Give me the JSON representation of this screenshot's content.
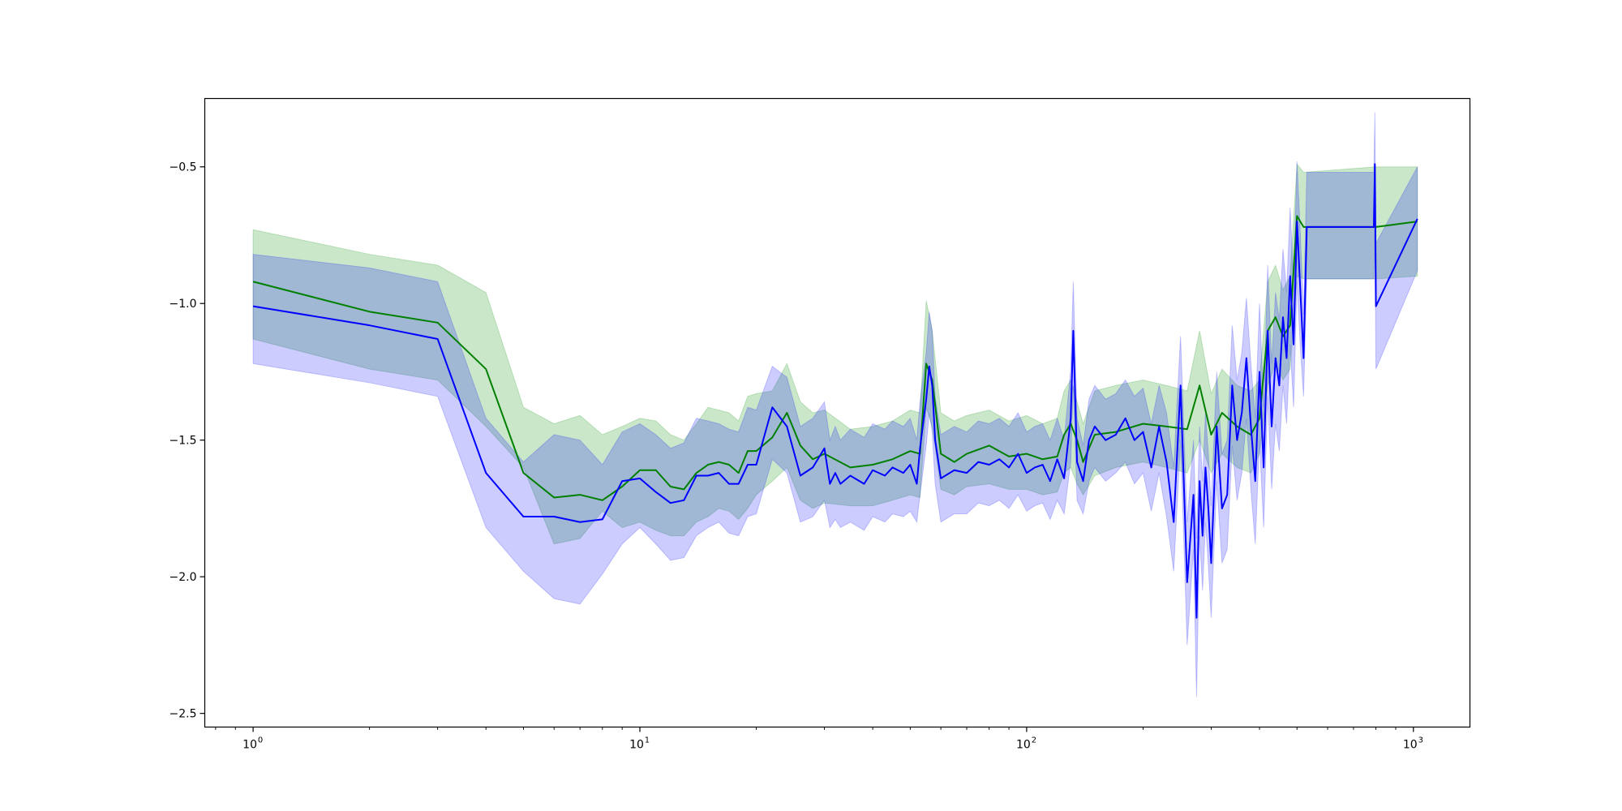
{
  "chart_data": {
    "type": "line",
    "x_scale": "log",
    "xlim": [
      0.75,
      1400
    ],
    "ylim": [
      -2.55,
      -0.25
    ],
    "grid": false,
    "x_ticks": [
      {
        "value": 1,
        "base": "10",
        "exp": "0"
      },
      {
        "value": 10,
        "base": "10",
        "exp": "1"
      },
      {
        "value": 100,
        "base": "10",
        "exp": "2"
      },
      {
        "value": 1000,
        "base": "10",
        "exp": "3"
      }
    ],
    "y_ticks": [
      {
        "value": -0.5,
        "label": "−0.5"
      },
      {
        "value": -1.0,
        "label": "−1.0"
      },
      {
        "value": -1.5,
        "label": "−1.5"
      },
      {
        "value": -2.0,
        "label": "−2.0"
      },
      {
        "value": -2.5,
        "label": "−2.5"
      }
    ],
    "series": [
      {
        "color": "#008000",
        "band_color": "#2ca02c",
        "band_opacity": 0.25,
        "x": [
          1,
          2,
          3,
          4,
          5,
          6,
          7,
          8,
          9,
          10,
          11,
          12,
          13,
          14,
          15,
          16,
          17,
          18,
          19,
          20,
          22,
          24,
          26,
          28,
          30,
          35,
          40,
          45,
          50,
          53,
          55,
          57,
          60,
          65,
          70,
          80,
          90,
          100,
          110,
          120,
          125,
          130,
          135,
          140,
          150,
          170,
          200,
          230,
          260,
          280,
          300,
          320,
          350,
          380,
          400,
          420,
          440,
          460,
          480,
          500,
          520,
          800,
          1024
        ],
        "y": [
          -0.92,
          -1.03,
          -1.07,
          -1.24,
          -1.62,
          -1.71,
          -1.7,
          -1.72,
          -1.67,
          -1.61,
          -1.61,
          -1.67,
          -1.68,
          -1.62,
          -1.59,
          -1.58,
          -1.59,
          -1.62,
          -1.54,
          -1.54,
          -1.49,
          -1.4,
          -1.52,
          -1.57,
          -1.55,
          -1.6,
          -1.59,
          -1.57,
          -1.54,
          -1.55,
          -1.22,
          -1.28,
          -1.55,
          -1.58,
          -1.55,
          -1.52,
          -1.56,
          -1.55,
          -1.57,
          -1.56,
          -1.48,
          -1.44,
          -1.5,
          -1.58,
          -1.48,
          -1.47,
          -1.44,
          -1.45,
          -1.46,
          -1.3,
          -1.48,
          -1.4,
          -1.45,
          -1.48,
          -1.42,
          -1.1,
          -1.05,
          -1.12,
          -1.08,
          -0.68,
          -0.72,
          -0.72,
          -0.7
        ],
        "lower": [
          -1.13,
          -1.24,
          -1.28,
          -1.45,
          -1.6,
          -1.88,
          -1.86,
          -1.76,
          -1.82,
          -1.8,
          -1.83,
          -1.85,
          -1.85,
          -1.8,
          -1.78,
          -1.75,
          -1.76,
          -1.79,
          -1.75,
          -1.7,
          -1.65,
          -1.6,
          -1.72,
          -1.75,
          -1.73,
          -1.74,
          -1.74,
          -1.72,
          -1.7,
          -1.71,
          -1.38,
          -1.45,
          -1.68,
          -1.7,
          -1.67,
          -1.66,
          -1.68,
          -1.68,
          -1.7,
          -1.69,
          -1.62,
          -1.6,
          -1.66,
          -1.7,
          -1.63,
          -1.6,
          -1.58,
          -1.6,
          -1.62,
          -1.5,
          -1.62,
          -1.55,
          -1.6,
          -1.62,
          -1.55,
          -1.3,
          -1.22,
          -1.28,
          -1.24,
          -0.9,
          -0.91,
          -0.91,
          -0.9
        ],
        "upper": [
          -0.73,
          -0.82,
          -0.86,
          -0.96,
          -1.38,
          -1.44,
          -1.41,
          -1.48,
          -1.45,
          -1.42,
          -1.43,
          -1.48,
          -1.5,
          -1.44,
          -1.38,
          -1.39,
          -1.4,
          -1.43,
          -1.34,
          -1.33,
          -1.32,
          -1.22,
          -1.36,
          -1.4,
          -1.39,
          -1.46,
          -1.45,
          -1.43,
          -1.39,
          -1.4,
          -0.99,
          -1.1,
          -1.4,
          -1.43,
          -1.41,
          -1.39,
          -1.43,
          -1.41,
          -1.44,
          -1.42,
          -1.32,
          -1.28,
          -1.36,
          -1.44,
          -1.32,
          -1.3,
          -1.28,
          -1.3,
          -1.32,
          -1.1,
          -1.33,
          -1.24,
          -1.3,
          -1.32,
          -1.28,
          -0.92,
          -0.86,
          -0.95,
          -0.9,
          -0.49,
          -0.52,
          -0.5,
          -0.5
        ]
      },
      {
        "color": "#0000ff",
        "band_color": "#0000ff",
        "band_opacity": 0.2,
        "x": [
          1,
          2,
          3,
          4,
          5,
          6,
          7,
          8,
          9,
          10,
          11,
          12,
          13,
          14,
          15,
          16,
          17,
          18,
          19,
          20,
          22,
          24,
          26,
          28,
          30,
          31,
          32,
          33,
          35,
          38,
          40,
          43,
          45,
          48,
          50,
          52,
          53,
          55,
          56,
          57,
          58,
          60,
          65,
          70,
          75,
          80,
          85,
          90,
          95,
          100,
          105,
          110,
          115,
          120,
          125,
          130,
          132,
          135,
          140,
          145,
          150,
          160,
          170,
          180,
          190,
          200,
          210,
          220,
          230,
          240,
          250,
          260,
          270,
          275,
          280,
          285,
          290,
          295,
          300,
          310,
          320,
          330,
          340,
          350,
          360,
          370,
          380,
          390,
          400,
          410,
          420,
          430,
          440,
          450,
          460,
          470,
          480,
          490,
          500,
          510,
          520,
          530,
          790,
          795,
          800,
          1024
        ],
        "y": [
          -1.01,
          -1.08,
          -1.13,
          -1.62,
          -1.78,
          -1.78,
          -1.8,
          -1.79,
          -1.65,
          -1.64,
          -1.69,
          -1.73,
          -1.72,
          -1.63,
          -1.63,
          -1.62,
          -1.66,
          -1.66,
          -1.59,
          -1.59,
          -1.38,
          -1.45,
          -1.63,
          -1.6,
          -1.53,
          -1.66,
          -1.62,
          -1.66,
          -1.63,
          -1.66,
          -1.61,
          -1.63,
          -1.6,
          -1.62,
          -1.59,
          -1.66,
          -1.53,
          -1.35,
          -1.23,
          -1.3,
          -1.5,
          -1.64,
          -1.61,
          -1.62,
          -1.58,
          -1.59,
          -1.57,
          -1.6,
          -1.55,
          -1.62,
          -1.6,
          -1.59,
          -1.65,
          -1.57,
          -1.64,
          -1.42,
          -1.1,
          -1.58,
          -1.65,
          -1.5,
          -1.45,
          -1.5,
          -1.48,
          -1.42,
          -1.5,
          -1.47,
          -1.6,
          -1.45,
          -1.58,
          -1.8,
          -1.3,
          -2.02,
          -1.7,
          -2.15,
          -1.65,
          -1.85,
          -1.6,
          -1.75,
          -1.95,
          -1.45,
          -1.75,
          -1.7,
          -1.3,
          -1.5,
          -1.4,
          -1.2,
          -1.45,
          -1.65,
          -1.25,
          -1.6,
          -1.1,
          -1.45,
          -1.2,
          -1.3,
          -1.05,
          -1.2,
          -0.9,
          -1.15,
          -0.7,
          -0.95,
          -1.2,
          -0.72,
          -0.72,
          -0.49,
          -1.01,
          -0.69
        ],
        "lower": [
          -1.22,
          -1.29,
          -1.34,
          -1.82,
          -1.98,
          -2.08,
          -2.1,
          -1.99,
          -1.88,
          -1.82,
          -1.88,
          -1.94,
          -1.93,
          -1.85,
          -1.82,
          -1.8,
          -1.84,
          -1.85,
          -1.78,
          -1.77,
          -1.57,
          -1.62,
          -1.8,
          -1.78,
          -1.72,
          -1.82,
          -1.79,
          -1.82,
          -1.8,
          -1.83,
          -1.78,
          -1.8,
          -1.77,
          -1.78,
          -1.76,
          -1.8,
          -1.7,
          -1.52,
          -1.4,
          -1.47,
          -1.66,
          -1.8,
          -1.77,
          -1.77,
          -1.73,
          -1.74,
          -1.72,
          -1.75,
          -1.7,
          -1.76,
          -1.74,
          -1.73,
          -1.79,
          -1.72,
          -1.77,
          -1.58,
          -1.3,
          -1.72,
          -1.77,
          -1.65,
          -1.6,
          -1.65,
          -1.62,
          -1.58,
          -1.66,
          -1.62,
          -1.76,
          -1.62,
          -1.78,
          -1.98,
          -1.5,
          -2.25,
          -1.9,
          -2.44,
          -1.85,
          -2.05,
          -1.8,
          -1.96,
          -2.15,
          -1.65,
          -1.95,
          -1.9,
          -1.52,
          -1.72,
          -1.62,
          -1.42,
          -1.68,
          -1.88,
          -1.5,
          -1.82,
          -1.34,
          -1.68,
          -1.44,
          -1.54,
          -1.3,
          -1.44,
          -1.15,
          -1.38,
          -0.92,
          -1.16,
          -1.34,
          -0.91,
          -0.91,
          -0.72,
          -1.24,
          -0.88
        ],
        "upper": [
          -0.82,
          -0.87,
          -0.92,
          -1.42,
          -1.58,
          -1.48,
          -1.5,
          -1.59,
          -1.47,
          -1.44,
          -1.48,
          -1.53,
          -1.51,
          -1.42,
          -1.43,
          -1.44,
          -1.46,
          -1.47,
          -1.38,
          -1.39,
          -1.23,
          -1.27,
          -1.45,
          -1.42,
          -1.36,
          -1.5,
          -1.45,
          -1.5,
          -1.46,
          -1.49,
          -1.44,
          -1.46,
          -1.43,
          -1.45,
          -1.42,
          -1.5,
          -1.36,
          -1.18,
          -1.03,
          -1.1,
          -1.34,
          -1.48,
          -1.45,
          -1.47,
          -1.43,
          -1.44,
          -1.42,
          -1.45,
          -1.4,
          -1.47,
          -1.45,
          -1.44,
          -1.5,
          -1.42,
          -1.5,
          -1.24,
          -0.92,
          -1.42,
          -1.52,
          -1.35,
          -1.3,
          -1.35,
          -1.33,
          -1.28,
          -1.34,
          -1.31,
          -1.44,
          -1.3,
          -1.4,
          -1.6,
          -1.12,
          -1.8,
          -1.5,
          -1.86,
          -1.45,
          -1.65,
          -1.4,
          -1.55,
          -1.74,
          -1.25,
          -1.55,
          -1.5,
          -1.08,
          -1.28,
          -1.18,
          -0.98,
          -1.22,
          -1.42,
          -1.0,
          -1.38,
          -0.86,
          -1.22,
          -0.96,
          -1.06,
          -0.8,
          -0.96,
          -0.65,
          -0.92,
          -0.48,
          -0.74,
          -1.04,
          -0.52,
          -0.52,
          -0.3,
          -0.78,
          -0.5
        ]
      }
    ]
  }
}
